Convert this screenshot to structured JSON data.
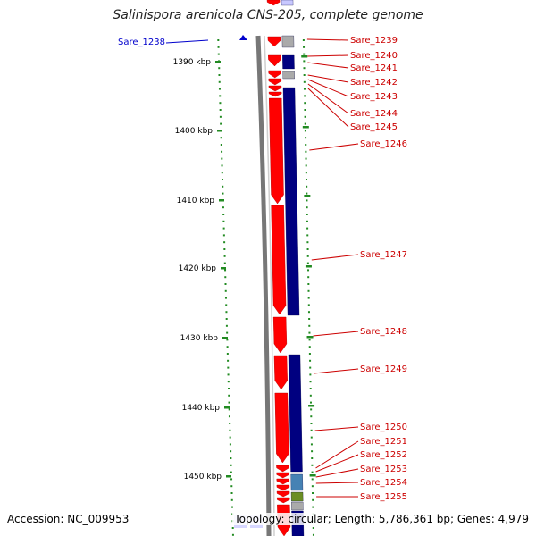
{
  "title": "Salinispora arenicola CNS-205, complete genome",
  "footer": {
    "accession": "Accession: NC_009953",
    "topology": "Topology: circular; Length: 5,786,361 bp; Genes: 4,979"
  },
  "colors": {
    "forward": "#ff0000",
    "reverse": "#000080",
    "gray": "#aaaaaa",
    "steel": "#4682b4",
    "olive": "#6b8e23",
    "tick": "#228b22",
    "left_label": "#0000cc",
    "right_label": "#cc0000"
  },
  "axis": {
    "unit": "kbp",
    "ticks": [
      "1390 kbp",
      "1400 kbp",
      "1410 kbp",
      "1420 kbp",
      "1430 kbp",
      "1440 kbp",
      "1450 kbp"
    ]
  },
  "left_label": "Sare_1238",
  "right_labels": [
    "Sare_1239",
    "Sare_1240",
    "Sare_1241",
    "Sare_1242",
    "Sare_1243",
    "Sare_1244",
    "Sare_1245",
    "Sare_1246",
    "Sare_1247",
    "Sare_1248",
    "Sare_1249",
    "Sare_1250",
    "Sare_1251",
    "Sare_1252",
    "Sare_1253",
    "Sare_1254",
    "Sare_1255"
  ]
}
